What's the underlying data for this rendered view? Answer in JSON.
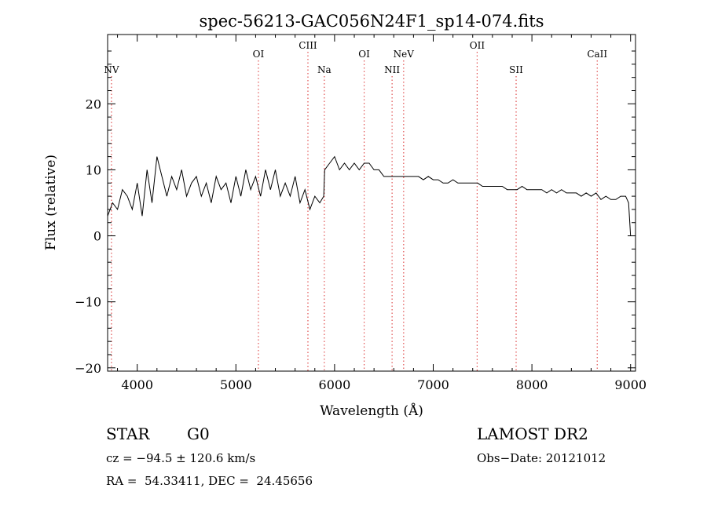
{
  "chart_data": {
    "type": "line",
    "title": "spec-56213-GAC056N24F1_sp14-074.fits",
    "xlabel": "Wavelength (Å)",
    "ylabel": "Flux (relative)",
    "xlim": [
      3700,
      9050
    ],
    "ylim": [
      -20.5,
      30.5
    ],
    "xticks": [
      4000,
      5000,
      6000,
      7000,
      8000,
      9000
    ],
    "yticks": [
      -20,
      -10,
      0,
      10,
      20
    ],
    "grid": false,
    "legend": "none",
    "line_color": "#000000",
    "marker_color": "#e05050",
    "markers": [
      {
        "label": "NV",
        "x": 3739
      },
      {
        "label": "OI",
        "x": 5228
      },
      {
        "label": "CIII",
        "x": 5730
      },
      {
        "label": "Na",
        "x": 5896
      },
      {
        "label": "OI",
        "x": 6300
      },
      {
        "label": "NII",
        "x": 6583
      },
      {
        "label": "NeV",
        "x": 6700
      },
      {
        "label": "OII",
        "x": 7445
      },
      {
        "label": "SII",
        "x": 7840
      },
      {
        "label": "CaII",
        "x": 8662
      }
    ],
    "series": [
      {
        "x": [
          3700,
          3750,
          3800,
          3850,
          3900,
          3950,
          4000,
          4050,
          4100,
          4150,
          4200,
          4250,
          4300,
          4350,
          4400,
          4450,
          4500,
          4550,
          4600,
          4650,
          4700,
          4750,
          4800,
          4850,
          4900,
          4950,
          5000,
          5050,
          5100,
          5150,
          5200,
          5250,
          5300,
          5350,
          5400,
          5450,
          5500,
          5550,
          5600,
          5650,
          5700,
          5750,
          5800,
          5850,
          5890,
          5900,
          5950,
          6000,
          6050,
          6100,
          6150,
          6200,
          6250,
          6300,
          6350,
          6400,
          6450,
          6500,
          6550,
          6600,
          6650,
          6700,
          6750,
          6800,
          6850,
          6900,
          6950,
          7000,
          7050,
          7100,
          7150,
          7200,
          7250,
          7300,
          7350,
          7400,
          7450,
          7500,
          7550,
          7600,
          7650,
          7700,
          7750,
          7800,
          7850,
          7900,
          7950,
          8000,
          8050,
          8100,
          8150,
          8200,
          8250,
          8300,
          8350,
          8400,
          8450,
          8500,
          8550,
          8600,
          8650,
          8700,
          8750,
          8800,
          8850,
          8900,
          8950,
          8980,
          9000
        ],
        "y": [
          3,
          5,
          4,
          7,
          6,
          4,
          8,
          3,
          10,
          5,
          12,
          9,
          6,
          9,
          7,
          10,
          6,
          8,
          9,
          6,
          8,
          5,
          9,
          7,
          8,
          5,
          9,
          6,
          10,
          7,
          9,
          6,
          10,
          7,
          10,
          6,
          8,
          6,
          9,
          5,
          7,
          4,
          6,
          5,
          6,
          10,
          11,
          12,
          10,
          11,
          10,
          11,
          10,
          11,
          11,
          10,
          10,
          9,
          9,
          9,
          9,
          9,
          9,
          9,
          9,
          8.5,
          9,
          8.5,
          8.5,
          8,
          8,
          8.5,
          8,
          8,
          8,
          8,
          8,
          7.5,
          7.5,
          7.5,
          7.5,
          7.5,
          7,
          7,
          7,
          7.5,
          7,
          7,
          7,
          7,
          6.5,
          7,
          6.5,
          7,
          6.5,
          6.5,
          6.5,
          6,
          6.5,
          6,
          6.5,
          5.5,
          6,
          5.5,
          5.5,
          6,
          6,
          5,
          0
        ]
      }
    ]
  },
  "info": {
    "object_class": "STAR",
    "subclass": "G0",
    "survey": "LAMOST DR2",
    "redshift": "cz = −94.5 ± 120.6 km/s",
    "obs_date": "Obs−Date: 20121012",
    "coords": "RA =  54.33411, DEC =  24.45656"
  }
}
